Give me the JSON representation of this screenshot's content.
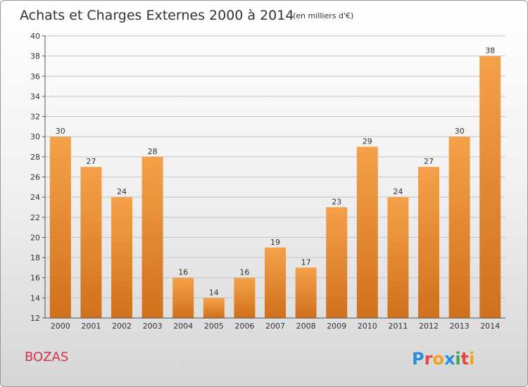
{
  "chart_data": {
    "type": "bar",
    "title": "Achats et Charges Externes 2000 à 2014",
    "subtitle": "(en milliers d'€)",
    "categories": [
      "2000",
      "2001",
      "2002",
      "2003",
      "2004",
      "2005",
      "2006",
      "2007",
      "2008",
      "2009",
      "2010",
      "2011",
      "2012",
      "2013",
      "2014"
    ],
    "values": [
      30,
      27,
      24,
      28,
      16,
      14,
      16,
      19,
      17,
      23,
      29,
      24,
      27,
      30,
      38
    ],
    "yticks": [
      "12",
      "14",
      "16",
      "18",
      "20",
      "22",
      "24",
      "26",
      "28",
      "30",
      "32",
      "34",
      "36",
      "38",
      "40"
    ],
    "ylim": [
      12,
      40
    ],
    "grid": true,
    "bar_color": "#f5a14a",
    "bar_color_dark": "#d0701c"
  },
  "footer": {
    "place": "BOZAS",
    "place_color": "#d2324a",
    "brand": "Proxiti"
  }
}
